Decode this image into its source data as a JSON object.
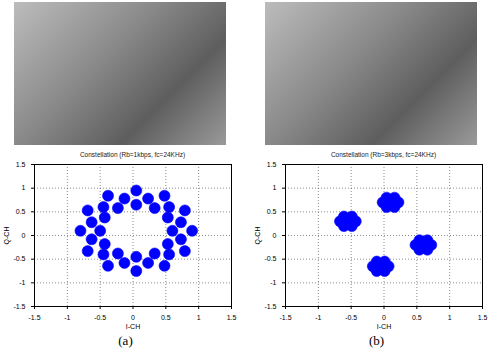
{
  "chart_data": [
    {
      "type": "scatter",
      "title": "Constellation (Rb=1kbps, fc=24KHz)",
      "x_label": "I-CH",
      "y_label": "Q-CH",
      "caption": "(a)",
      "color": "#0000ff",
      "marker": "dot",
      "grid": true,
      "xlim": [
        -1.5,
        1.5
      ],
      "ylim": [
        -1.5,
        1.5
      ],
      "xticks": [
        -1.5,
        -1,
        -0.5,
        0,
        0.5,
        1,
        1.5
      ],
      "yticks": [
        -1.5,
        -1,
        -0.5,
        0,
        0.5,
        1,
        1.5
      ],
      "x": [
        0.6,
        0.53,
        0.33,
        0.05,
        -0.23,
        -0.43,
        -0.5,
        -0.43,
        -0.23,
        0.05,
        0.33,
        0.53,
        0.9,
        0.79,
        0.48,
        0.05,
        -0.38,
        -0.69,
        -0.8,
        -0.69,
        -0.38,
        0.05,
        0.48,
        0.79,
        0.73,
        0.55,
        0.23,
        -0.13,
        -0.45,
        -0.63,
        -0.63,
        -0.45,
        -0.13,
        0.23,
        0.55,
        0.73
      ],
      "values": [
        0.1,
        0.38,
        0.58,
        0.65,
        0.58,
        0.38,
        0.1,
        -0.18,
        -0.38,
        -0.45,
        -0.38,
        -0.18,
        0.1,
        0.53,
        0.84,
        0.95,
        0.84,
        0.53,
        0.1,
        -0.33,
        -0.64,
        -0.75,
        -0.64,
        -0.33,
        0.28,
        0.6,
        0.78,
        0.78,
        0.6,
        0.28,
        -0.08,
        -0.4,
        -0.58,
        -0.58,
        -0.4,
        -0.08
      ]
    },
    {
      "type": "scatter",
      "title": "Constellation (Rb=3kbps, fc=24KHz)",
      "x_label": "I-CH",
      "y_label": "Q-CH",
      "caption": "(b)",
      "color": "#0000ff",
      "marker": "dot",
      "grid": true,
      "xlim": [
        -1.5,
        1.5
      ],
      "ylim": [
        -1.5,
        1.5
      ],
      "xticks": [
        -1.5,
        -1,
        -0.5,
        0,
        0.5,
        1,
        1.5
      ],
      "yticks": [
        -1.5,
        -1,
        -0.5,
        0,
        0.5,
        1,
        1.5
      ],
      "x": [
        -0.55,
        -0.67,
        -0.43,
        -0.61,
        -0.49,
        -0.61,
        -0.49,
        0.1,
        -0.02,
        0.22,
        0.04,
        0.16,
        0.04,
        0.16,
        0.6,
        0.48,
        0.72,
        0.54,
        0.66,
        0.54,
        0.66,
        -0.05,
        -0.17,
        0.07,
        -0.11,
        0.01,
        -0.11,
        0.01
      ],
      "values": [
        0.3,
        0.3,
        0.3,
        0.4,
        0.4,
        0.2,
        0.2,
        0.7,
        0.7,
        0.7,
        0.8,
        0.8,
        0.6,
        0.6,
        -0.2,
        -0.2,
        -0.2,
        -0.1,
        -0.1,
        -0.3,
        -0.3,
        -0.65,
        -0.65,
        -0.65,
        -0.55,
        -0.55,
        -0.75,
        -0.75
      ]
    }
  ]
}
